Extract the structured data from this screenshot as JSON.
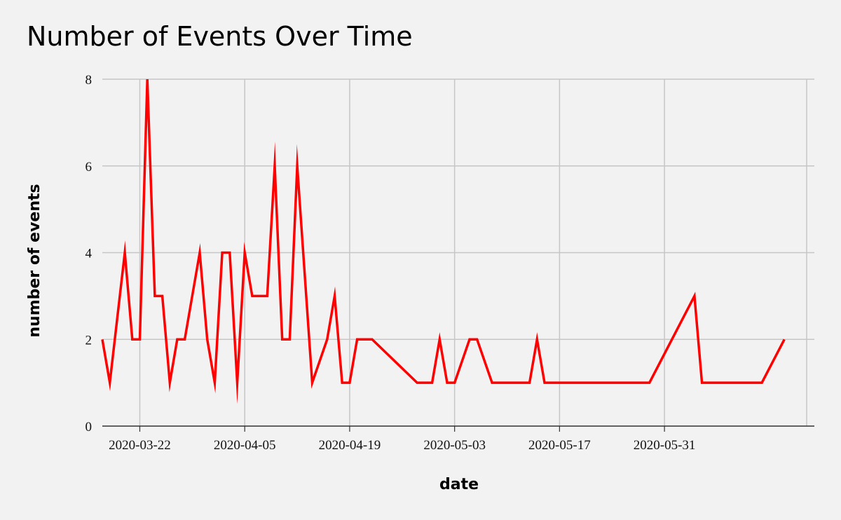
{
  "chart_data": {
    "type": "line",
    "title": "Number of Events Over Time",
    "xlabel": "date",
    "ylabel": "number of events",
    "xlim": [
      "2020-03-17",
      "2020-06-20"
    ],
    "ylim": [
      0,
      8
    ],
    "yticks": [
      0,
      2,
      4,
      6,
      8
    ],
    "xticks": [
      "2020-03-22",
      "2020-04-05",
      "2020-04-19",
      "2020-05-03",
      "2020-05-17",
      "2020-05-31"
    ],
    "grid": true,
    "line_color": "#ff0000",
    "series": [
      {
        "x": [
          "2020-03-17",
          "2020-03-18",
          "2020-03-20",
          "2020-03-21",
          "2020-03-22",
          "2020-03-23",
          "2020-03-24",
          "2020-03-25",
          "2020-03-26",
          "2020-03-27",
          "2020-03-28",
          "2020-03-30",
          "2020-03-31",
          "2020-04-01",
          "2020-04-02",
          "2020-04-03",
          "2020-04-04",
          "2020-04-05",
          "2020-04-06",
          "2020-04-08",
          "2020-04-09",
          "2020-04-10",
          "2020-04-11",
          "2020-04-12",
          "2020-04-14",
          "2020-04-16",
          "2020-04-17",
          "2020-04-18",
          "2020-04-19",
          "2020-04-20",
          "2020-04-22",
          "2020-04-28",
          "2020-04-30",
          "2020-05-01",
          "2020-05-02",
          "2020-05-03",
          "2020-05-05",
          "2020-05-06",
          "2020-05-08",
          "2020-05-13",
          "2020-05-14",
          "2020-05-15",
          "2020-05-29",
          "2020-06-04",
          "2020-06-05",
          "2020-06-13",
          "2020-06-16"
        ],
        "values": [
          2,
          1,
          4,
          2,
          2,
          8,
          3,
          3,
          1,
          2,
          2,
          4,
          2,
          1,
          4,
          4,
          1,
          4,
          3,
          3,
          6,
          2,
          2,
          6,
          1,
          2,
          3,
          1,
          1,
          2,
          2,
          1,
          1,
          2,
          1,
          1,
          2,
          2,
          1,
          1,
          2,
          1,
          1,
          3,
          1,
          1,
          2
        ]
      }
    ]
  }
}
